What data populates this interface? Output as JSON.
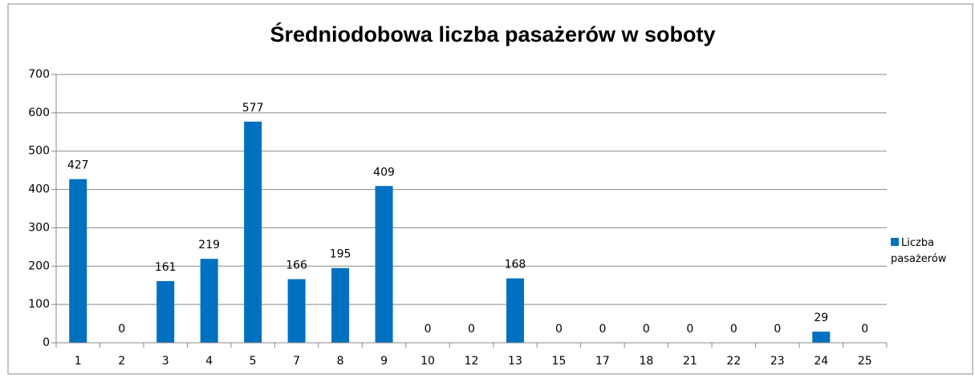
{
  "chart_data": {
    "type": "bar",
    "title": "Średniodobowa liczba pasażerów w soboty",
    "categories": [
      "1",
      "2",
      "3",
      "4",
      "5",
      "7",
      "8",
      "9",
      "10",
      "12",
      "13",
      "15",
      "17",
      "18",
      "21",
      "22",
      "23",
      "24",
      "25"
    ],
    "series": [
      {
        "name": "Liczba pasażerów",
        "color": "#0070c0",
        "values": [
          427,
          0,
          161,
          219,
          577,
          166,
          195,
          409,
          0,
          0,
          168,
          0,
          0,
          0,
          0,
          0,
          0,
          29,
          0
        ]
      }
    ],
    "ylim": [
      0,
      700
    ],
    "yticks": [
      0,
      100,
      200,
      300,
      400,
      500,
      600,
      700
    ],
    "grid": true,
    "legend": "right"
  }
}
